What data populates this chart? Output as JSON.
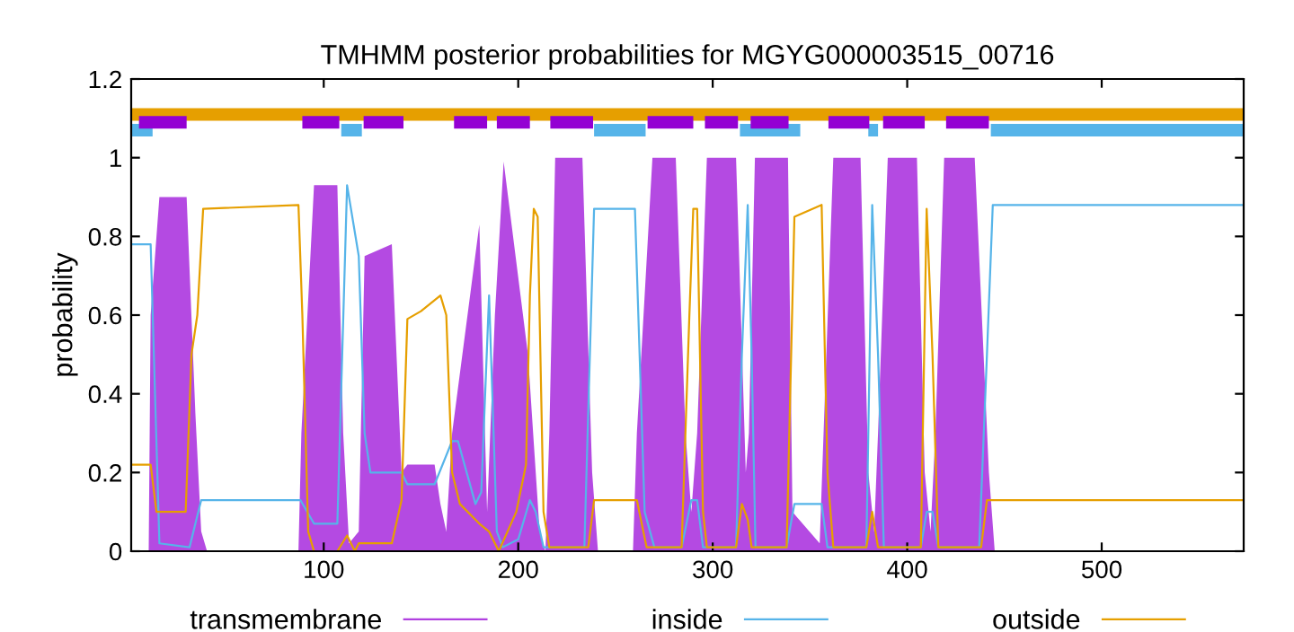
{
  "chart_data": {
    "type": "line",
    "title": "TMHMM posterior probabilities for MGYG000003515_00716",
    "ylabel": "probability",
    "xlim": [
      1,
      573
    ],
    "xticks": [
      100,
      200,
      300,
      400,
      500
    ],
    "ylim": [
      0,
      1.2
    ],
    "yticks": [
      0,
      0.2,
      0.4,
      0.6,
      0.8,
      1,
      1.2
    ],
    "grid": false,
    "legend": "bottom",
    "marker": "none",
    "line_style": "solid",
    "series": [
      {
        "name": "transmembrane",
        "type": "area",
        "color": "#b040e0",
        "x": [
          1,
          10,
          11,
          15.5,
          29.5,
          34,
          37,
          40,
          87,
          88.5,
          95,
          107,
          110,
          113,
          118,
          121,
          135,
          140,
          143,
          157,
          160,
          163,
          166,
          180,
          184,
          188,
          192.5,
          205,
          211,
          214,
          216,
          219,
          233,
          238,
          241,
          259,
          261,
          269,
          281,
          286,
          289,
          292,
          297,
          312,
          317,
          318.6,
          321.7,
          338.7,
          341,
          355,
          357,
          362,
          376,
          380,
          383,
          385,
          390,
          405,
          409,
          412,
          414.5,
          419,
          434.7,
          442,
          445,
          573
        ],
        "values": [
          0,
          0,
          0.6,
          0.9,
          0.9,
          0.35,
          0.05,
          0,
          0,
          0.3,
          0.93,
          0.93,
          0.3,
          0.02,
          0.05,
          0.75,
          0.78,
          0.2,
          0.22,
          0.22,
          0.12,
          0.05,
          0.3,
          0.83,
          0.1,
          0.6,
          0.99,
          0.5,
          0.05,
          0,
          0.3,
          1,
          1,
          0.2,
          0,
          0,
          0.3,
          1,
          1,
          0.3,
          0.1,
          0.3,
          1,
          1,
          0.2,
          0.3,
          1,
          1,
          0.1,
          0.02,
          0.3,
          1,
          1,
          0.2,
          0.05,
          0.3,
          1,
          1,
          0.2,
          0.05,
          0.3,
          1,
          1,
          0.2,
          0,
          0
        ]
      },
      {
        "name": "inside",
        "color": "#56b4e9",
        "x": [
          1,
          11,
          15.5,
          31,
          37,
          88,
          95,
          107,
          112,
          118,
          121,
          124,
          140,
          143,
          157,
          166,
          169,
          178,
          181,
          185,
          189,
          192,
          200,
          206,
          209,
          213,
          234,
          239,
          260,
          265,
          270,
          284,
          289,
          292,
          295,
          312,
          315,
          318,
          320,
          322,
          338,
          342,
          356,
          359,
          379,
          382,
          385,
          388,
          407,
          410,
          413,
          416,
          437,
          441,
          444,
          573
        ],
        "values": [
          0.78,
          0.78,
          0.02,
          0.01,
          0.13,
          0.13,
          0.07,
          0.07,
          0.93,
          0.75,
          0.3,
          0.2,
          0.2,
          0.17,
          0.17,
          0.28,
          0.28,
          0.12,
          0.15,
          0.65,
          0.05,
          0.01,
          0.03,
          0.13,
          0.1,
          0.01,
          0.01,
          0.87,
          0.87,
          0.1,
          0.01,
          0.01,
          0.13,
          0.13,
          0.01,
          0.01,
          0.5,
          0.88,
          0.5,
          0.01,
          0.01,
          0.12,
          0.12,
          0.01,
          0.01,
          0.88,
          0.5,
          0.01,
          0.01,
          0.1,
          0.1,
          0.01,
          0.01,
          0.5,
          0.88,
          0.88
        ]
      },
      {
        "name": "outside",
        "color": "#e69f00",
        "x": [
          1,
          11,
          14,
          29,
          32,
          35,
          38,
          87,
          89,
          92,
          95,
          107,
          112,
          116,
          118,
          135,
          140,
          143,
          150,
          160,
          163,
          166,
          170,
          180,
          185,
          190,
          199,
          204,
          206,
          208,
          210,
          213,
          216,
          236,
          239,
          261,
          266,
          284,
          288,
          290,
          292,
          295,
          297,
          312,
          315,
          318,
          320,
          338,
          342,
          356,
          359,
          362,
          379,
          382,
          385,
          407,
          410,
          413,
          416,
          438,
          441,
          573
        ],
        "values": [
          0.22,
          0.22,
          0.1,
          0.1,
          0.5,
          0.6,
          0.87,
          0.88,
          0.6,
          0.05,
          0,
          0,
          0.04,
          0,
          0.02,
          0.02,
          0.13,
          0.59,
          0.61,
          0.65,
          0.6,
          0.2,
          0.12,
          0.07,
          0.05,
          0,
          0.1,
          0.22,
          0.65,
          0.87,
          0.85,
          0.1,
          0.01,
          0.01,
          0.13,
          0.13,
          0.01,
          0.01,
          0.6,
          0.87,
          0.87,
          0.1,
          0.01,
          0.01,
          0.12,
          0.08,
          0.01,
          0.01,
          0.85,
          0.88,
          0.2,
          0.01,
          0.01,
          0.1,
          0.01,
          0.01,
          0.87,
          0.5,
          0.01,
          0.01,
          0.13,
          0.13
        ]
      },
      {
        "type": "line",
        "color": "#e69f00",
        "x": [
          1,
          573
        ],
        "values": [
          1.11,
          1.11
        ]
      },
      {
        "type": "line",
        "color": "#56b4e9",
        "x": [
          1,
          12,
          null,
          109,
          119.6,
          null,
          239,
          265.5,
          null,
          314,
          345,
          null,
          380,
          385,
          null,
          443,
          573
        ],
        "values": [
          1.07,
          1.07,
          null,
          1.07,
          1.07,
          null,
          1.07,
          1.07,
          null,
          1.07,
          1.07,
          null,
          1.07,
          1.07,
          null,
          1.07,
          1.07
        ]
      },
      {
        "type": "line",
        "color": "#9400d3",
        "x": [
          5,
          29.5,
          null,
          89,
          108,
          null,
          120.5,
          141,
          null,
          167,
          184,
          null,
          189,
          206,
          null,
          216.5,
          238.5,
          null,
          266.5,
          290,
          null,
          296,
          313,
          null,
          319.5,
          339,
          null,
          359.5,
          380.5,
          null,
          387.6,
          409,
          null,
          420,
          442
        ],
        "values": [
          1.09,
          1.09,
          null,
          1.09,
          1.09,
          null,
          1.09,
          1.09,
          null,
          1.09,
          1.09,
          null,
          1.09,
          1.09,
          null,
          1.09,
          1.09,
          null,
          1.09,
          1.09,
          null,
          1.09,
          1.09,
          null,
          1.09,
          1.09,
          null,
          1.09,
          1.09,
          null,
          1.09,
          1.09,
          null,
          1.09,
          1.09
        ]
      }
    ]
  }
}
